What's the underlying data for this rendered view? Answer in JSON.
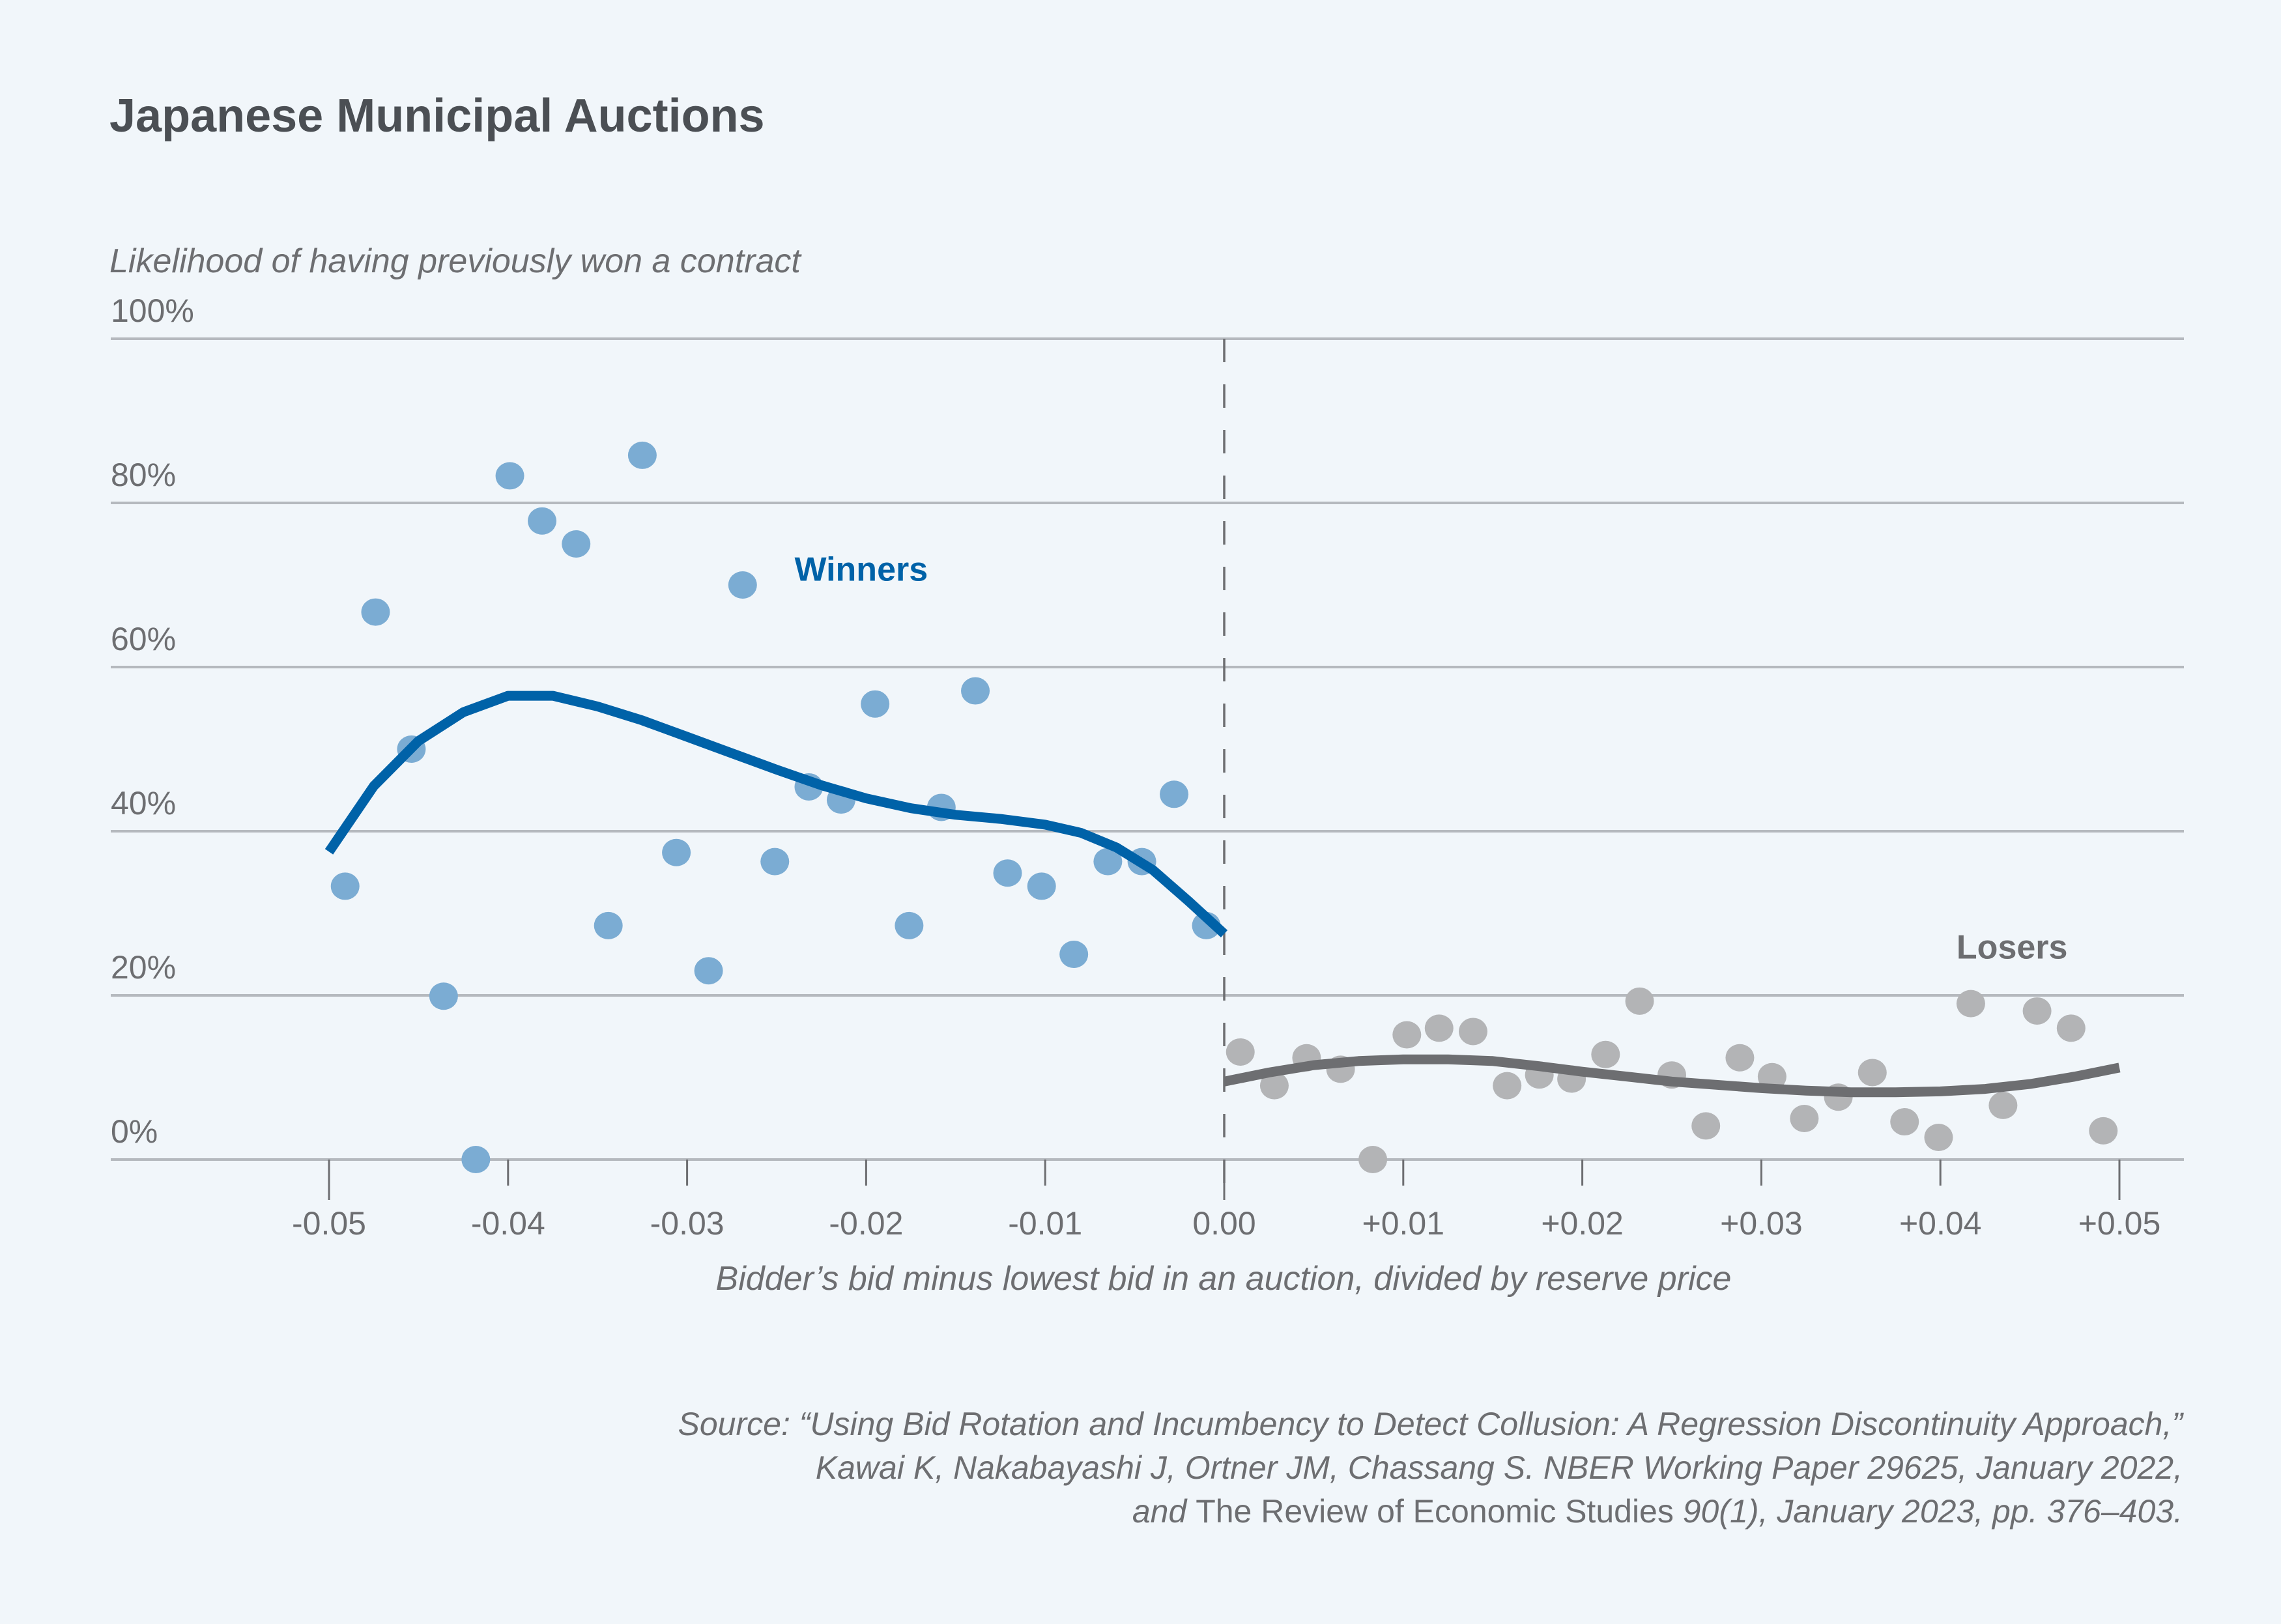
{
  "chart_data": {
    "type": "scatter",
    "title": "Japanese Municipal Auctions",
    "ylabel": "Likelihood of having previously won a contract",
    "xlabel": "Bidder’s bid minus lowest bid in an auction, divided by reserve price",
    "xlim": [
      -0.05,
      0.05
    ],
    "ylim": [
      0,
      100
    ],
    "grid": true,
    "y_ticks": [
      {
        "value": 0,
        "label": "0%"
      },
      {
        "value": 20,
        "label": "20%"
      },
      {
        "value": 40,
        "label": "40%"
      },
      {
        "value": 60,
        "label": "60%"
      },
      {
        "value": 80,
        "label": "80%"
      },
      {
        "value": 100,
        "label": "100%"
      }
    ],
    "x_ticks": [
      {
        "value": -0.05,
        "label": "-0.05",
        "major": true
      },
      {
        "value": -0.04,
        "label": "-0.04",
        "major": false
      },
      {
        "value": -0.03,
        "label": "-0.03",
        "major": false
      },
      {
        "value": -0.02,
        "label": "-0.02",
        "major": false
      },
      {
        "value": -0.01,
        "label": "-0.01",
        "major": false
      },
      {
        "value": 0.0,
        "label": "0.00",
        "major": true
      },
      {
        "value": 0.01,
        "label": "+0.01",
        "major": false
      },
      {
        "value": 0.02,
        "label": "+0.02",
        "major": false
      },
      {
        "value": 0.03,
        "label": "+0.03",
        "major": false
      },
      {
        "value": 0.04,
        "label": "+0.04",
        "major": false
      },
      {
        "value": 0.05,
        "label": "+0.05",
        "major": true
      }
    ],
    "cutoff_line": {
      "x": 0.0,
      "style": "dashed"
    },
    "series": [
      {
        "name": "Winners",
        "label": "Winners",
        "label_anchor": {
          "x": -0.024,
          "y": 70.5
        },
        "point_color": "#7bacd3",
        "line_color": "#0062a8",
        "label_color": "#0062a8",
        "points": [
          {
            "x": -0.0491,
            "y": 33.3
          },
          {
            "x": -0.0474,
            "y": 66.7
          },
          {
            "x": -0.0454,
            "y": 50.0
          },
          {
            "x": -0.0436,
            "y": 19.9
          },
          {
            "x": -0.0418,
            "y": 0.0
          },
          {
            "x": -0.0399,
            "y": 83.3
          },
          {
            "x": -0.0381,
            "y": 77.8
          },
          {
            "x": -0.0362,
            "y": 75.0
          },
          {
            "x": -0.0344,
            "y": 28.5
          },
          {
            "x": -0.0325,
            "y": 85.8
          },
          {
            "x": -0.0306,
            "y": 37.4
          },
          {
            "x": -0.0288,
            "y": 23.0
          },
          {
            "x": -0.0269,
            "y": 70.0
          },
          {
            "x": -0.0251,
            "y": 36.3
          },
          {
            "x": -0.0232,
            "y": 45.4
          },
          {
            "x": -0.0214,
            "y": 43.8
          },
          {
            "x": -0.0195,
            "y": 55.5
          },
          {
            "x": -0.0176,
            "y": 28.5
          },
          {
            "x": -0.0158,
            "y": 42.9
          },
          {
            "x": -0.0139,
            "y": 57.1
          },
          {
            "x": -0.0121,
            "y": 34.9
          },
          {
            "x": -0.0102,
            "y": 33.3
          },
          {
            "x": -0.0084,
            "y": 25.0
          },
          {
            "x": -0.0065,
            "y": 36.3
          },
          {
            "x": -0.0046,
            "y": 36.3
          },
          {
            "x": -0.0028,
            "y": 44.5
          },
          {
            "x": -0.001,
            "y": 28.5
          }
        ],
        "fit": [
          {
            "x": -0.05,
            "y": 37.5
          },
          {
            "x": -0.0475,
            "y": 45.5
          },
          {
            "x": -0.045,
            "y": 51.0
          },
          {
            "x": -0.0425,
            "y": 54.5
          },
          {
            "x": -0.04,
            "y": 56.5
          },
          {
            "x": -0.0375,
            "y": 56.5
          },
          {
            "x": -0.035,
            "y": 55.2
          },
          {
            "x": -0.0325,
            "y": 53.5
          },
          {
            "x": -0.03,
            "y": 51.5
          },
          {
            "x": -0.0275,
            "y": 49.5
          },
          {
            "x": -0.025,
            "y": 47.5
          },
          {
            "x": -0.0225,
            "y": 45.6
          },
          {
            "x": -0.02,
            "y": 44.0
          },
          {
            "x": -0.0175,
            "y": 42.8
          },
          {
            "x": -0.015,
            "y": 42.0
          },
          {
            "x": -0.0125,
            "y": 41.5
          },
          {
            "x": -0.01,
            "y": 40.8
          },
          {
            "x": -0.008,
            "y": 39.8
          },
          {
            "x": -0.006,
            "y": 38.0
          },
          {
            "x": -0.004,
            "y": 35.3
          },
          {
            "x": -0.002,
            "y": 31.5
          },
          {
            "x": 0.0,
            "y": 27.5
          }
        ]
      },
      {
        "name": "Losers",
        "label": "Losers",
        "label_anchor": {
          "x": 0.0409,
          "y": 24.5
        },
        "point_color": "#b3b4b6",
        "line_color": "#6d6e71",
        "label_color": "#6d6e71",
        "points": [
          {
            "x": 0.0009,
            "y": 13.1
          },
          {
            "x": 0.0028,
            "y": 9.0
          },
          {
            "x": 0.0046,
            "y": 12.4
          },
          {
            "x": 0.0065,
            "y": 11.0
          },
          {
            "x": 0.0083,
            "y": 0.0
          },
          {
            "x": 0.0102,
            "y": 15.2
          },
          {
            "x": 0.012,
            "y": 16.0
          },
          {
            "x": 0.0139,
            "y": 15.6
          },
          {
            "x": 0.0158,
            "y": 9.0
          },
          {
            "x": 0.0176,
            "y": 10.3
          },
          {
            "x": 0.0194,
            "y": 9.8
          },
          {
            "x": 0.0213,
            "y": 12.8
          },
          {
            "x": 0.0232,
            "y": 19.3
          },
          {
            "x": 0.025,
            "y": 10.3
          },
          {
            "x": 0.0269,
            "y": 4.1
          },
          {
            "x": 0.0288,
            "y": 12.4
          },
          {
            "x": 0.0306,
            "y": 10.1
          },
          {
            "x": 0.0324,
            "y": 5.0
          },
          {
            "x": 0.0343,
            "y": 7.6
          },
          {
            "x": 0.0362,
            "y": 10.6
          },
          {
            "x": 0.038,
            "y": 4.6
          },
          {
            "x": 0.0399,
            "y": 2.7
          },
          {
            "x": 0.0417,
            "y": 19.0
          },
          {
            "x": 0.0435,
            "y": 6.6
          },
          {
            "x": 0.0454,
            "y": 18.1
          },
          {
            "x": 0.0473,
            "y": 16.0
          },
          {
            "x": 0.0491,
            "y": 3.5
          }
        ],
        "fit": [
          {
            "x": 0.0,
            "y": 9.5
          },
          {
            "x": 0.0025,
            "y": 10.6
          },
          {
            "x": 0.005,
            "y": 11.5
          },
          {
            "x": 0.0075,
            "y": 12.0
          },
          {
            "x": 0.01,
            "y": 12.2
          },
          {
            "x": 0.0125,
            "y": 12.2
          },
          {
            "x": 0.015,
            "y": 12.0
          },
          {
            "x": 0.0175,
            "y": 11.4
          },
          {
            "x": 0.02,
            "y": 10.7
          },
          {
            "x": 0.0225,
            "y": 10.1
          },
          {
            "x": 0.025,
            "y": 9.5
          },
          {
            "x": 0.0275,
            "y": 9.1
          },
          {
            "x": 0.03,
            "y": 8.7
          },
          {
            "x": 0.0325,
            "y": 8.4
          },
          {
            "x": 0.035,
            "y": 8.2
          },
          {
            "x": 0.0375,
            "y": 8.2
          },
          {
            "x": 0.04,
            "y": 8.3
          },
          {
            "x": 0.0425,
            "y": 8.6
          },
          {
            "x": 0.045,
            "y": 9.2
          },
          {
            "x": 0.0475,
            "y": 10.1
          },
          {
            "x": 0.05,
            "y": 11.2
          }
        ]
      }
    ]
  },
  "source": {
    "line1": "Source: “Using Bid Rotation and Incumbency to Detect Collusion: A Regression Discontinuity Approach,”",
    "line2": "Kawai K, Nakabayashi J, Ortner JM, Chassang S. NBER Working Paper 29625, January 2022,",
    "line3_prefix": "and ",
    "line3_journal": "The Review of Economic Studies",
    "line3_suffix": " 90(1), January 2023, pp. 376–403."
  },
  "colors": {
    "background": "#f1f6fa",
    "gridline": "#b5b9be",
    "axis_text": "#6d6e71",
    "title_text": "#4b4f54"
  }
}
